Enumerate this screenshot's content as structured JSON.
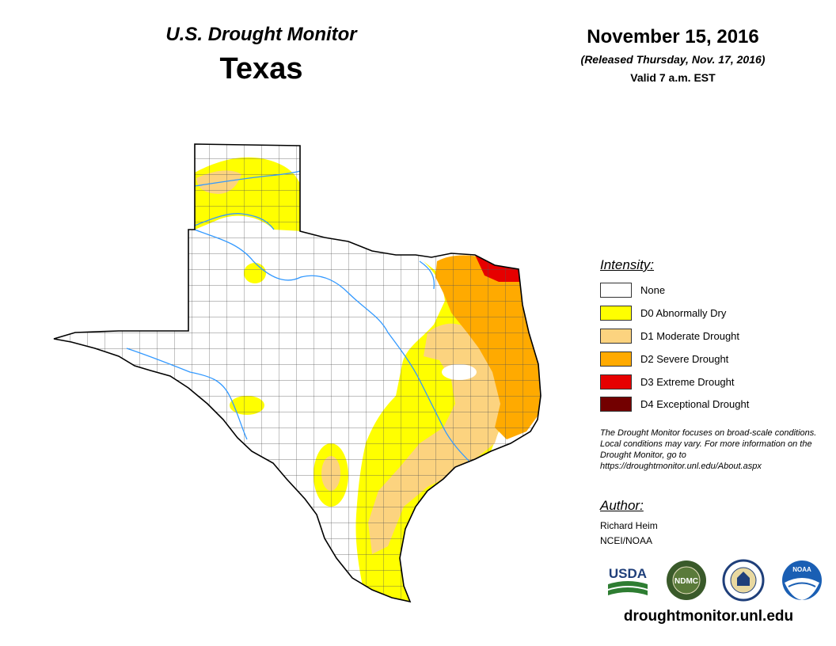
{
  "header": {
    "monitor_title": "U.S. Drought Monitor",
    "state": "Texas",
    "date": "November 15, 2016",
    "released": "(Released Thursday, Nov. 17, 2016)",
    "valid": "Valid 7 a.m. EST"
  },
  "legend": {
    "title": "Intensity:",
    "items": [
      {
        "label": "None",
        "color": "#ffffff"
      },
      {
        "label": "D0 Abnormally Dry",
        "color": "#ffff00"
      },
      {
        "label": "D1 Moderate Drought",
        "color": "#fcd37f"
      },
      {
        "label": "D2 Severe Drought",
        "color": "#ffaa00"
      },
      {
        "label": "D3 Extreme Drought",
        "color": "#e60000"
      },
      {
        "label": "D4 Exceptional Drought",
        "color": "#730000"
      }
    ]
  },
  "note": "The Drought Monitor focuses on broad-scale conditions. Local conditions may vary. For more information on the Drought Monitor, go to https://droughtmonitor.unl.edu/About.aspx",
  "author": {
    "title": "Author:",
    "name": "Richard Heim",
    "org": "NCEI/NOAA"
  },
  "logos": {
    "usda": "USDA",
    "ndmc": "NDMC",
    "noaa": "NOAA"
  },
  "website": "droughtmonitor.unl.edu",
  "colors": {
    "river": "#3399ff",
    "county_line": "#555555",
    "state_outline": "#000000"
  }
}
